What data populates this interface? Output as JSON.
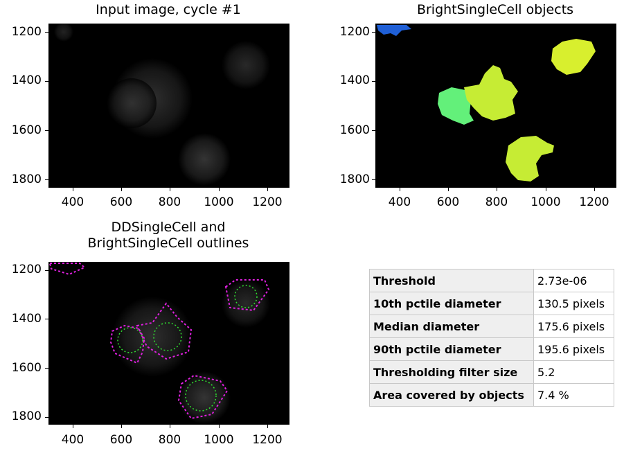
{
  "panels": {
    "input": {
      "title": "Input image, cycle #1",
      "yticks": [
        "1200",
        "1400",
        "1600",
        "1800"
      ],
      "xticks": [
        "400",
        "600",
        "800",
        "1000",
        "1200"
      ]
    },
    "objects": {
      "title": "BrightSingleCell objects",
      "yticks": [
        "1200",
        "1400",
        "1600",
        "1800"
      ],
      "xticks": [
        "400",
        "600",
        "800",
        "1000",
        "1200"
      ]
    },
    "outlines": {
      "title": "DDSingleCell and\nBrightSingleCell outlines",
      "yticks": [
        "1200",
        "1400",
        "1600",
        "1800"
      ],
      "xticks": [
        "400",
        "600",
        "800",
        "1000",
        "1200"
      ]
    }
  },
  "colors": {
    "object_blue": "#1f5fd6",
    "object_green": "#63f07a",
    "object_yellowgreen": "#c6ec34",
    "object_lime": "#d8ef2e",
    "outline_magenta": "#e020e0",
    "outline_green": "#30e030"
  },
  "stats": {
    "rows": [
      {
        "label": "Threshold",
        "value": "2.73e-06"
      },
      {
        "label": "10th pctile diameter",
        "value": "130.5 pixels"
      },
      {
        "label": "Median diameter",
        "value": "175.6 pixels"
      },
      {
        "label": "90th pctile diameter",
        "value": "195.6 pixels"
      },
      {
        "label": "Thresholding filter size",
        "value": "5.2"
      },
      {
        "label": "Area covered by objects",
        "value": "7.4 %"
      }
    ]
  }
}
